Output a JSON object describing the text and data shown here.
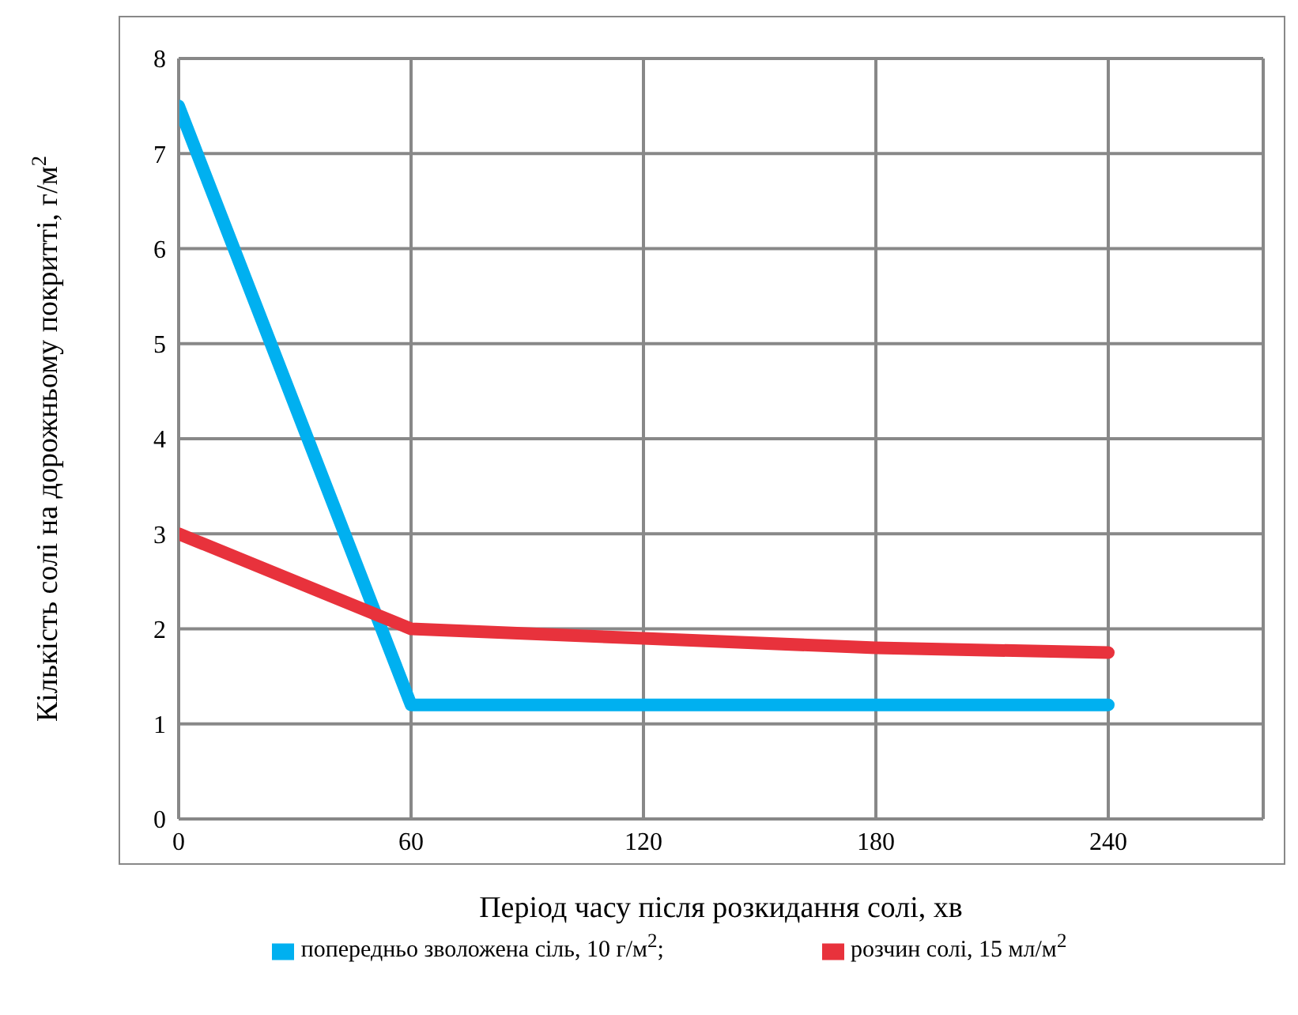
{
  "chart_data": {
    "type": "line",
    "xlabel": "Період часу після розкидання солі, хв",
    "ylabel": "Кількість солі на дорожньому покритті, г/м$^{2}$",
    "x": [
      0,
      60,
      120,
      180,
      240
    ],
    "series": [
      {
        "name": "попередньо зволожена сіль, 10 г/м$^{2}$;",
        "color": "#00b0f0",
        "x": [
          0,
          60,
          240
        ],
        "values": [
          7.5,
          1.2,
          1.2
        ]
      },
      {
        "name": "розчин солі, 15 мл/м$^{2}$",
        "color": "#e8323c",
        "values": [
          3,
          2,
          1.9,
          1.8,
          1.75
        ]
      }
    ],
    "xlim": [
      0,
      280
    ],
    "xticks": [
      0,
      60,
      120,
      180,
      240
    ],
    "ylim": [
      0,
      8
    ],
    "yticks": [
      0,
      1,
      2,
      3,
      4,
      5,
      6,
      7,
      8
    ],
    "grid": true,
    "legend": "bottom",
    "marker": "none",
    "line_style": "solid"
  }
}
